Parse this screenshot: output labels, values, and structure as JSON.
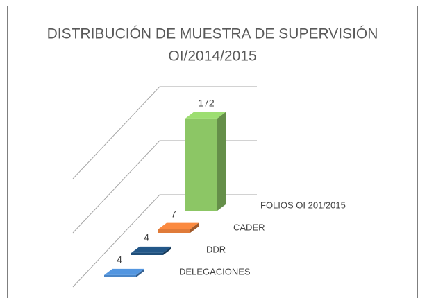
{
  "chart_data": {
    "type": "bar3d",
    "title": [
      "DISTRIBUCIÓN DE MUESTRA DE SUPERVISIÓN",
      "OI/2014/2015"
    ],
    "categories": [
      "DELEGACIONES",
      "DDR",
      "CADER",
      "FOLIOS OI 201/2015"
    ],
    "values": [
      4,
      4,
      7,
      172
    ],
    "colors": [
      "#4a86c8",
      "#1f4e79",
      "#e07b39",
      "#8cc665"
    ],
    "ylim": [
      0,
      200
    ],
    "yticks": [
      0,
      100,
      200
    ],
    "grid": true
  }
}
